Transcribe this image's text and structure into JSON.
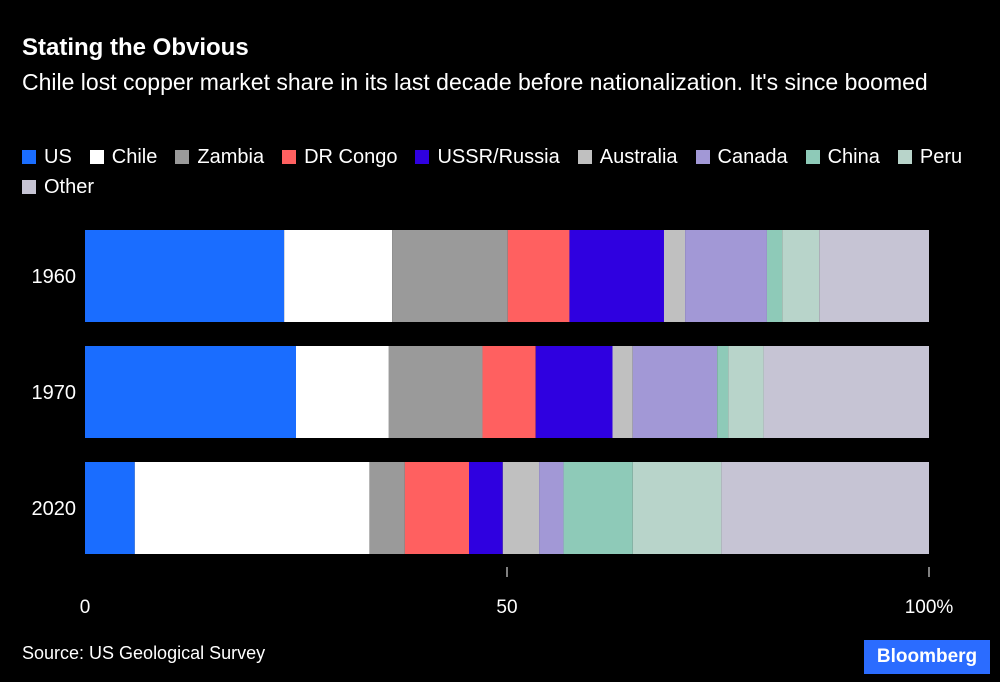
{
  "title": "Stating the Obvious",
  "subtitle": "Chile lost copper market share in its last decade before nationalization. It's since boomed",
  "source": "Source: US Geological Survey",
  "logo": "Bloomberg",
  "chart_data": {
    "type": "bar",
    "orientation": "horizontal",
    "stacked": true,
    "title": "Stating the Obvious",
    "subtitle": "Chile lost copper market share in its last decade before nationalization. It's since boomed",
    "categories": [
      "1960",
      "1970",
      "2020"
    ],
    "xlim": [
      0,
      100
    ],
    "xticks": [
      0,
      50,
      100
    ],
    "xtick_labels": [
      "0",
      "50",
      "100%"
    ],
    "legend_position": "top",
    "series": [
      {
        "name": "US",
        "color": "#1a6dff",
        "values": [
          23.6,
          25.0,
          5.9
        ]
      },
      {
        "name": "Chile",
        "color": "#ffffff",
        "values": [
          12.8,
          11.0,
          27.8
        ]
      },
      {
        "name": "Zambia",
        "color": "#9a9a9a",
        "values": [
          13.7,
          11.1,
          4.2
        ]
      },
      {
        "name": "DR Congo",
        "color": "#ff6060",
        "values": [
          7.3,
          6.3,
          7.6
        ]
      },
      {
        "name": "USSR/Russia",
        "color": "#2f00e0",
        "values": [
          11.2,
          9.1,
          4.0
        ]
      },
      {
        "name": "Australia",
        "color": "#c0c0c0",
        "values": [
          2.5,
          2.4,
          4.3
        ]
      },
      {
        "name": "Canada",
        "color": "#a298d6",
        "values": [
          9.7,
          10.0,
          2.9
        ]
      },
      {
        "name": "China",
        "color": "#8ecab8",
        "values": [
          1.8,
          1.3,
          8.2
        ]
      },
      {
        "name": "Peru",
        "color": "#b8d4ca",
        "values": [
          4.4,
          4.2,
          10.5
        ]
      },
      {
        "name": "Other",
        "color": "#c6c4d4",
        "values": [
          13.0,
          19.6,
          24.6
        ]
      }
    ]
  }
}
